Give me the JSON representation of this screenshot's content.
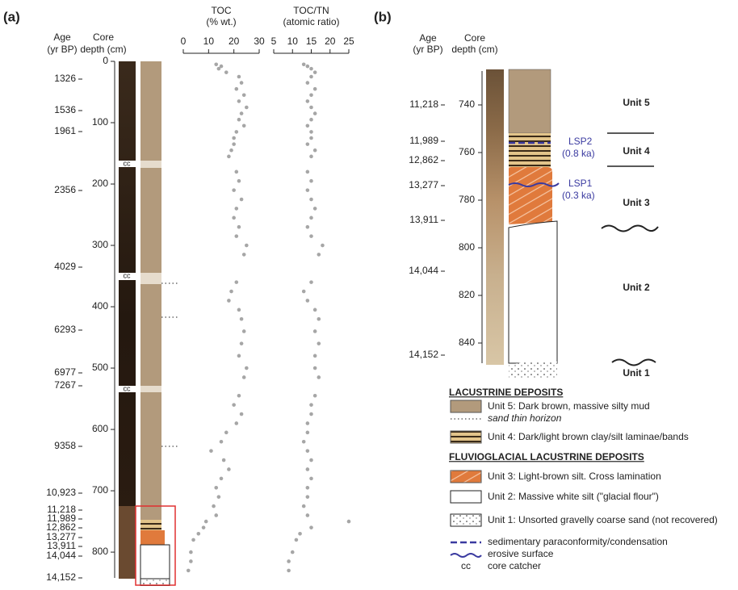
{
  "panel_a": {
    "label": "(a)",
    "age_title": "Age",
    "age_unit": "(yr BP)",
    "depth_title": "Core",
    "depth_unit": "depth (cm)",
    "ages": [
      "1326",
      "1536",
      "1961",
      "2356",
      "4029",
      "6293",
      "6977",
      "7267",
      "9358",
      "10,923",
      "11,218",
      "11,989",
      "12,862",
      "13,277",
      "13,911",
      "14,044",
      "14,152"
    ],
    "cc_labels": [
      "cc",
      "cc",
      "cc"
    ]
  },
  "chart_data": [
    {
      "type": "scatter",
      "title": "TOC",
      "subtitle": "(% wt.)",
      "xlim": [
        0,
        30
      ],
      "xticks": [
        0,
        10,
        20,
        30
      ],
      "ylim": [
        0,
        842
      ],
      "yticks": [
        0,
        100,
        200,
        300,
        400,
        500,
        600,
        700,
        800
      ],
      "color": "#a6a6a6",
      "depth": [
        5,
        8,
        12,
        18,
        25,
        35,
        45,
        55,
        65,
        75,
        85,
        95,
        105,
        115,
        125,
        135,
        145,
        155,
        180,
        195,
        210,
        225,
        240,
        255,
        270,
        285,
        300,
        315,
        360,
        375,
        390,
        405,
        420,
        440,
        460,
        480,
        500,
        515,
        545,
        560,
        575,
        590,
        605,
        620,
        635,
        650,
        665,
        680,
        695,
        710,
        725,
        740,
        750,
        760,
        770,
        780,
        800,
        815,
        830
      ],
      "values": [
        13,
        15,
        14,
        17,
        22,
        23,
        21,
        24,
        22,
        25,
        23,
        22,
        24,
        21,
        20,
        20,
        19,
        18,
        21,
        22,
        20,
        23,
        21,
        20,
        22,
        21,
        25,
        24,
        21,
        19,
        18,
        22,
        23,
        24,
        23,
        22,
        25,
        24,
        22,
        20,
        23,
        21,
        17,
        15,
        11,
        16,
        18,
        15,
        13,
        14,
        12,
        13,
        9,
        8,
        6,
        4,
        3,
        3,
        2
      ]
    },
    {
      "type": "scatter",
      "title": "TOC/TN",
      "subtitle": "(atomic ratio)",
      "xlim": [
        5,
        25
      ],
      "xticks": [
        5,
        10,
        15,
        20,
        25
      ],
      "ylim": [
        0,
        842
      ],
      "color": "#a6a6a6",
      "depth": [
        5,
        8,
        12,
        18,
        25,
        35,
        45,
        55,
        65,
        75,
        85,
        95,
        105,
        115,
        125,
        135,
        145,
        155,
        180,
        195,
        210,
        225,
        240,
        255,
        270,
        285,
        300,
        315,
        360,
        375,
        390,
        405,
        420,
        440,
        460,
        480,
        500,
        515,
        545,
        560,
        575,
        590,
        605,
        620,
        635,
        650,
        665,
        680,
        695,
        710,
        725,
        740,
        750,
        760,
        770,
        780,
        800,
        815,
        830
      ],
      "values": [
        13,
        14,
        15,
        16,
        15,
        14,
        16,
        15,
        14,
        15,
        16,
        15,
        14,
        15,
        15,
        14,
        16,
        15,
        14,
        15,
        14,
        15,
        16,
        15,
        14,
        15,
        18,
        17,
        15,
        13,
        14,
        16,
        17,
        16,
        17,
        16,
        16,
        17,
        16,
        15,
        15,
        14,
        14,
        13,
        14,
        15,
        14,
        15,
        14,
        14,
        13,
        14,
        25,
        15,
        12,
        11,
        10,
        9,
        9
      ]
    }
  ],
  "panel_b": {
    "label": "(b)",
    "age_title": "Age",
    "age_unit": "(yr BP)",
    "depth_title": "Core",
    "depth_unit": "depth (cm)",
    "depth_ticks": [
      740,
      760,
      780,
      800,
      820,
      840
    ],
    "ages": [
      "11,218",
      "11,989",
      "12,862",
      "13,277",
      "13,911",
      "14,044",
      "14,152"
    ],
    "units": [
      "Unit 5",
      "Unit 4",
      "Unit 3",
      "Unit 2",
      "Unit 1"
    ],
    "lsp2": "LSP2",
    "lsp2_age": "(0.8 ka)",
    "lsp1": "LSP1",
    "lsp1_age": "(0.3 ka)"
  },
  "legend": {
    "lacustrine": "LACUSTRINE DEPOSITS",
    "unit5": "Unit 5: Dark brown, massive silty mud",
    "sand": "sand thin horizon",
    "unit4": "Unit 4: Dark/light brown clay/silt laminae/bands",
    "fluvio": "FLUVIOGLACIAL LACUSTRINE DEPOSITS",
    "unit3": "Unit 3: Light-brown silt. Cross lamination",
    "unit2": "Unit 2: Massive white silt (\"glacial flour\")",
    "unit1": "Unit 1: Unsorted gravelly coarse sand (not recovered)",
    "paraconformity": "sedimentary paraconformity/condensation",
    "erosive": "erosive surface",
    "cc": "cc",
    "core_catcher": "core catcher"
  }
}
